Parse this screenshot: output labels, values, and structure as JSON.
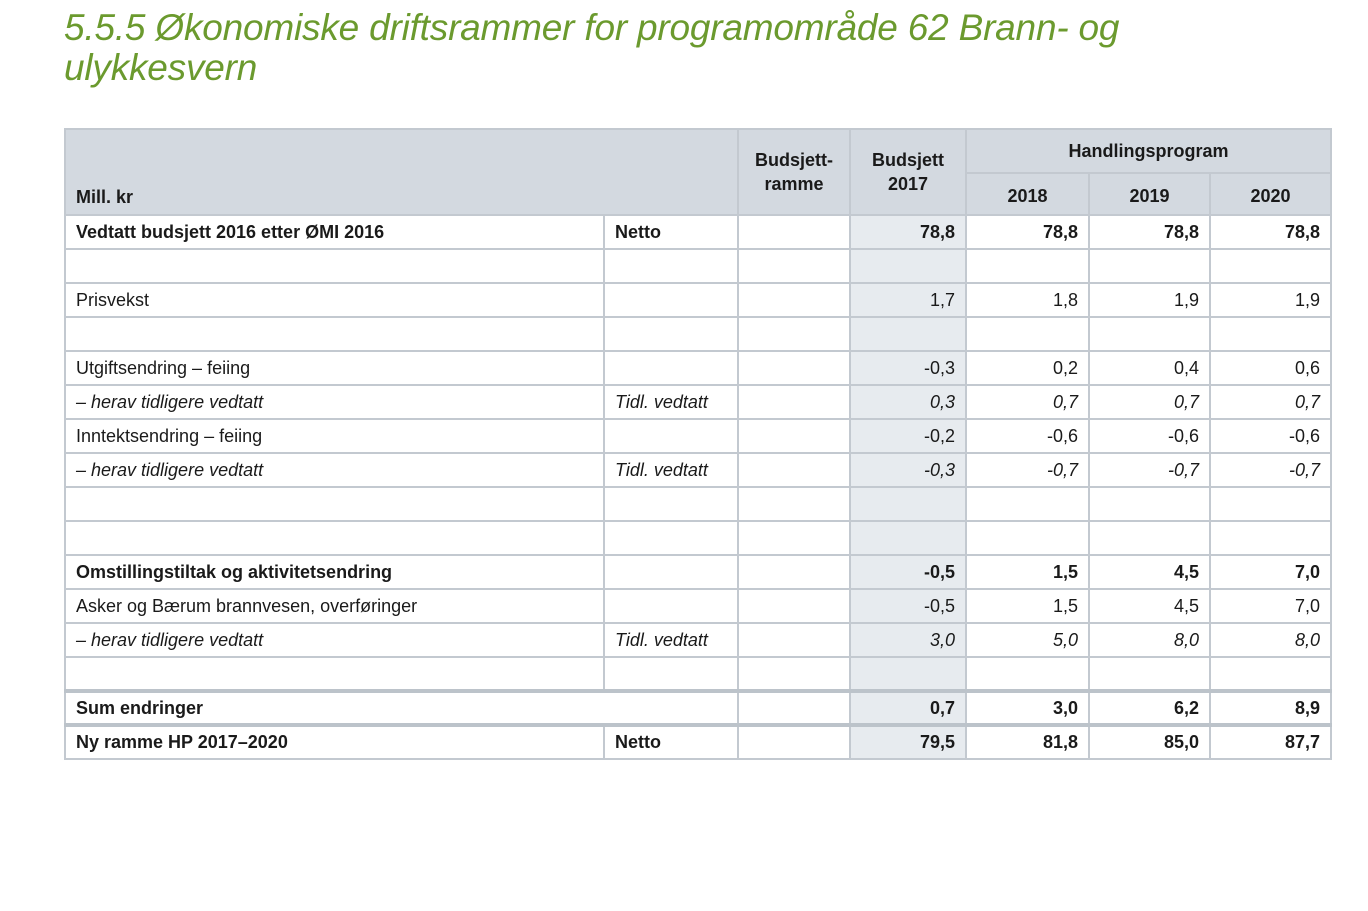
{
  "heading": "5.5.5 Økonomiske driftsrammer for programområde 62 Brann- og ulykkesvern",
  "table": {
    "header": {
      "unit": "Mill. kr",
      "col_ramme": "Budsjett-ramme",
      "col_budsjett": "Budsjett 2017",
      "group": "Handlingsprogram",
      "years": [
        "2018",
        "2019",
        "2020"
      ]
    },
    "rows": [
      {
        "label": "Vedtatt budsjett 2016 etter ØMI 2016",
        "type": "Netto",
        "ramme": "",
        "b2017": "78,8",
        "y2018": "78,8",
        "y2019": "78,8",
        "y2020": "78,8",
        "style": "bold"
      },
      {
        "label": "",
        "type": "",
        "ramme": "",
        "b2017": "",
        "y2018": "",
        "y2019": "",
        "y2020": "",
        "style": ""
      },
      {
        "label": "Prisvekst",
        "type": "",
        "ramme": "",
        "b2017": "1,7",
        "y2018": "1,8",
        "y2019": "1,9",
        "y2020": "1,9",
        "style": ""
      },
      {
        "label": "",
        "type": "",
        "ramme": "",
        "b2017": "",
        "y2018": "",
        "y2019": "",
        "y2020": "",
        "style": ""
      },
      {
        "label": "Utgiftsendring – feiing",
        "type": "",
        "ramme": "",
        "b2017": "-0,3",
        "y2018": "0,2",
        "y2019": "0,4",
        "y2020": "0,6",
        "style": ""
      },
      {
        "label": " – herav tidligere vedtatt",
        "type": "Tidl. vedtatt",
        "ramme": "",
        "b2017": "0,3",
        "y2018": "0,7",
        "y2019": "0,7",
        "y2020": "0,7",
        "style": "ital"
      },
      {
        "label": "Inntektsendring – feiing",
        "type": "",
        "ramme": "",
        "b2017": "-0,2",
        "y2018": "-0,6",
        "y2019": "-0,6",
        "y2020": "-0,6",
        "style": ""
      },
      {
        "label": " – herav tidligere vedtatt",
        "type": "Tidl. vedtatt",
        "ramme": "",
        "b2017": "-0,3",
        "y2018": "-0,7",
        "y2019": "-0,7",
        "y2020": "-0,7",
        "style": "ital"
      },
      {
        "label": "",
        "type": "",
        "ramme": "",
        "b2017": "",
        "y2018": "",
        "y2019": "",
        "y2020": "",
        "style": ""
      },
      {
        "label": "",
        "type": "",
        "ramme": "",
        "b2017": "",
        "y2018": "",
        "y2019": "",
        "y2020": "",
        "style": ""
      },
      {
        "label": "Omstillingstiltak og aktivitetsendring",
        "type": "",
        "ramme": "",
        "b2017": "-0,5",
        "y2018": "1,5",
        "y2019": "4,5",
        "y2020": "7,0",
        "style": "bold"
      },
      {
        "label": "Asker og Bærum brannvesen, overføringer",
        "type": "",
        "ramme": "",
        "b2017": "-0,5",
        "y2018": "1,5",
        "y2019": "4,5",
        "y2020": "7,0",
        "style": ""
      },
      {
        "label": " – herav tidligere vedtatt",
        "type": "Tidl. vedtatt",
        "ramme": "",
        "b2017": "3,0",
        "y2018": "5,0",
        "y2019": "8,0",
        "y2020": "8,0",
        "style": "ital"
      },
      {
        "label": "",
        "type": "",
        "ramme": "",
        "b2017": "",
        "y2018": "",
        "y2019": "",
        "y2020": "",
        "style": ""
      }
    ],
    "sum": {
      "label": "Sum endringer",
      "ramme": "",
      "b2017": "0,7",
      "y2018": "3,0",
      "y2019": "6,2",
      "y2020": "8,9"
    },
    "total": {
      "label": "Ny ramme HP 2017–2020",
      "type": "Netto",
      "ramme": "",
      "b2017": "79,5",
      "y2018": "81,8",
      "y2019": "85,0",
      "y2020": "87,7"
    }
  }
}
